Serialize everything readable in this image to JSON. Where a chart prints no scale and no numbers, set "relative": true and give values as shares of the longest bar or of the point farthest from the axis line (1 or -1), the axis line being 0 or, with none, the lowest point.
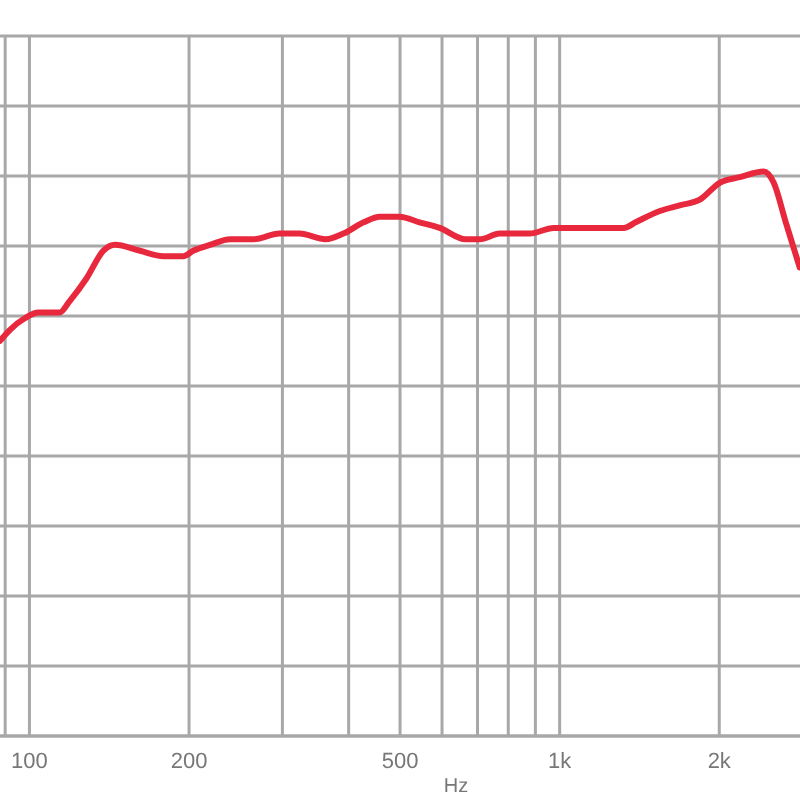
{
  "chart_data": {
    "type": "line",
    "xlabel": "Hz",
    "log": "x",
    "relative": true,
    "grid": true,
    "line_style": "solid",
    "marker": "none",
    "xlim": [
      88,
      2840
    ],
    "xticks": [
      {
        "value": 90,
        "label": null
      },
      100,
      200,
      {
        "value": 300,
        "label": null
      },
      {
        "value": 400,
        "label": null
      },
      500,
      {
        "value": 600,
        "label": null
      },
      {
        "value": 700,
        "label": null
      },
      {
        "value": 800,
        "label": null
      },
      {
        "value": 900,
        "label": null
      },
      {
        "value": 1000,
        "label": "1k"
      },
      {
        "value": 2000,
        "label": "2k"
      }
    ],
    "series": [
      {
        "color": "#e8283c",
        "x": [
          88,
          92,
          98,
          104,
          114,
          119,
          128,
          138,
          145,
          161,
          179,
          195,
          204,
          219,
          239,
          265,
          296,
          323,
          362,
          391,
          427,
          458,
          499,
          544,
          594,
          665,
          707,
          771,
          878,
          974,
          1063,
          1159,
          1321,
          1391,
          1545,
          1684,
          1838,
          2004,
          2186,
          2426,
          2534,
          2670,
          2836
        ],
        "values": [
          0.7,
          0.72,
          0.74,
          0.75,
          0.75,
          0.77,
          0.81,
          0.86,
          0.87,
          0.86,
          0.85,
          0.85,
          0.86,
          0.87,
          0.88,
          0.88,
          0.89,
          0.89,
          0.88,
          0.89,
          0.91,
          0.92,
          0.92,
          0.91,
          0.9,
          0.88,
          0.88,
          0.89,
          0.89,
          0.9,
          0.9,
          0.9,
          0.9,
          0.91,
          0.93,
          0.94,
          0.95,
          0.98,
          0.99,
          1.0,
          0.98,
          0.91,
          0.83
        ]
      }
    ]
  }
}
